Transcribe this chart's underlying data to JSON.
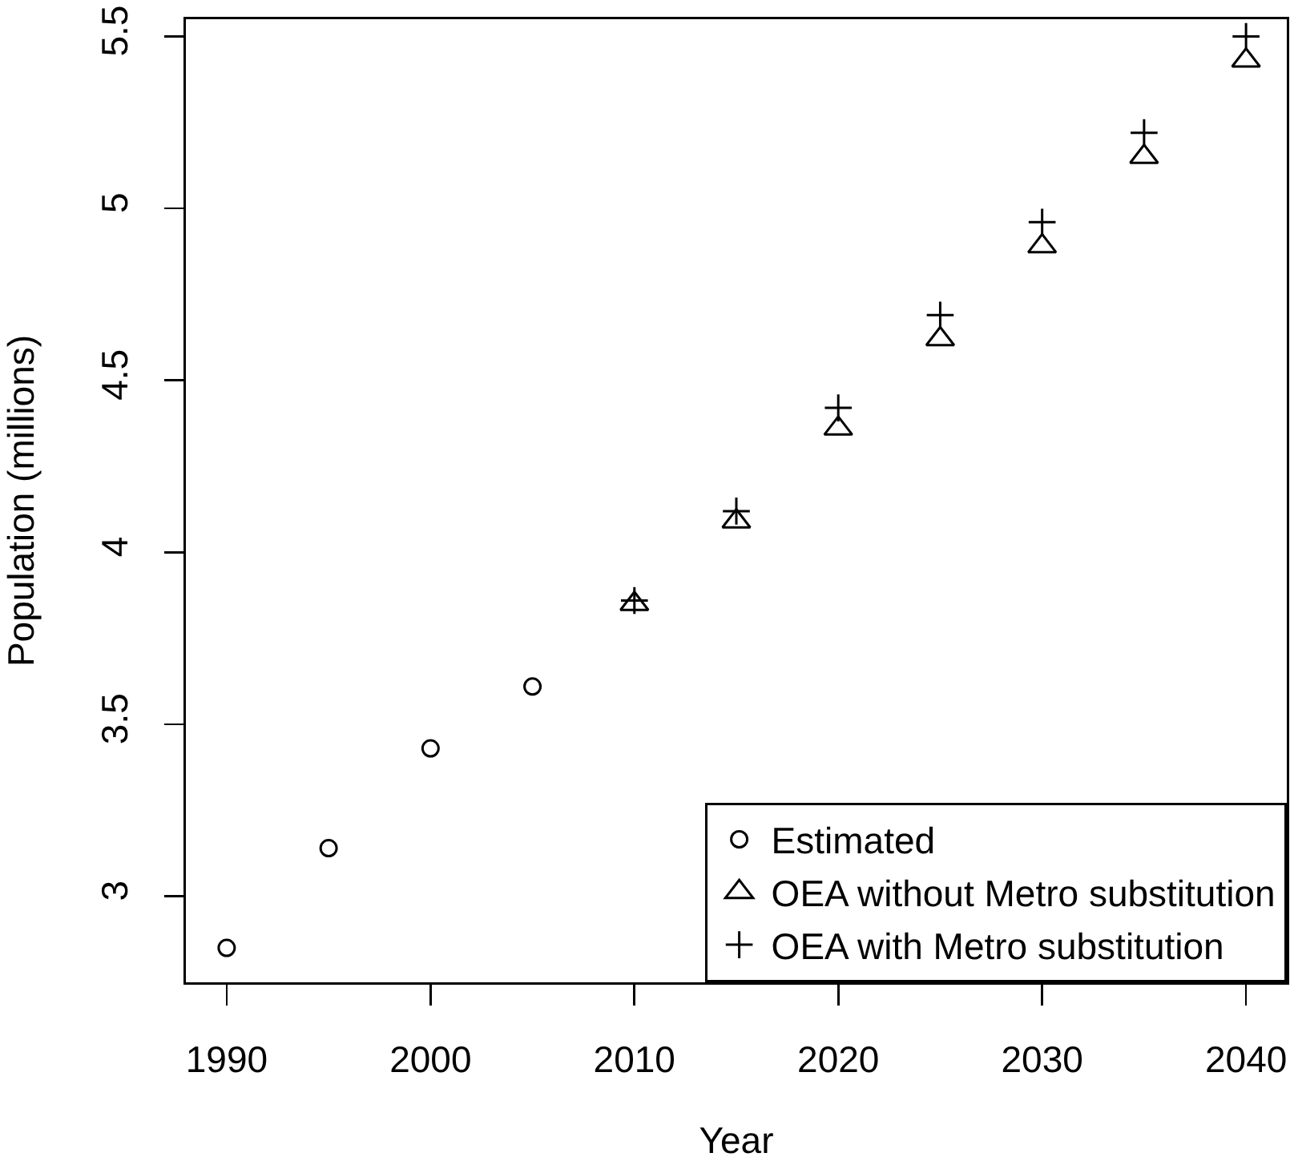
{
  "chart_data": {
    "type": "scatter",
    "xlabel": "Year",
    "ylabel": "Population (millions)",
    "series": [
      {
        "name": "Estimated",
        "color": "#000000",
        "marker": "circle",
        "x": [
          1990,
          1995,
          2000,
          2005
        ],
        "values": [
          2.85,
          3.14,
          3.43,
          3.61
        ]
      },
      {
        "name": "OEA without Metro substitution",
        "color": "#000000",
        "marker": "triangle",
        "x": [
          2010,
          2015,
          2020,
          2025,
          2030,
          2035,
          2040
        ],
        "values": [
          3.85,
          4.09,
          4.36,
          4.62,
          4.89,
          5.15,
          5.43
        ]
      },
      {
        "name": "OEA with Metro substitution",
        "color": "#000000",
        "marker": "cross",
        "x": [
          2010,
          2015,
          2020,
          2025,
          2030,
          2035,
          2040
        ],
        "values": [
          3.86,
          4.12,
          4.42,
          4.69,
          4.96,
          5.22,
          5.5
        ]
      }
    ],
    "xlim": [
      1988,
      2042
    ],
    "xticks": [
      1990,
      2000,
      2010,
      2020,
      2030,
      2040
    ],
    "ylim": [
      2.75,
      5.55
    ],
    "yticks": [
      3,
      3.5,
      4,
      4.5,
      5,
      5.5
    ],
    "legend": "bottom right"
  }
}
